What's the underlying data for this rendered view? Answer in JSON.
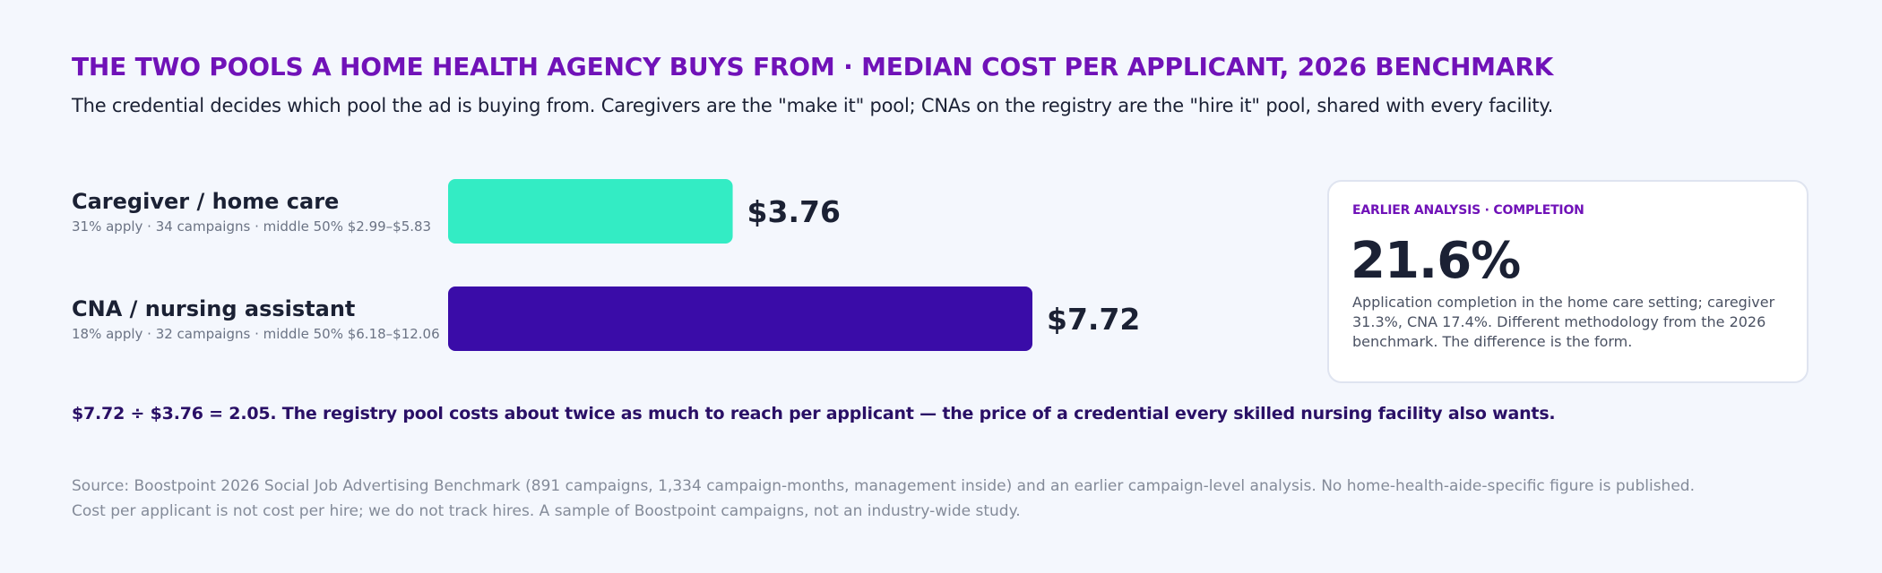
{
  "title": "THE TWO POOLS A HOME HEALTH AGENCY BUYS FROM · MEDIAN COST PER APPLICANT, 2026 BENCHMARK",
  "subtitle": "The credential decides which pool the ad is buying from. Caregivers are the \"make it\" pool; CNAs on the registry are the \"hire it\" pool, shared with every facility.",
  "rows": [
    {
      "label": "Caregiver / home care",
      "meta": "31% apply · 34 campaigns · middle 50% $2.99–$5.83",
      "value_label": "$3.76"
    },
    {
      "label": "CNA / nursing assistant",
      "meta": "18% apply · 32 campaigns · middle 50% $6.18–$12.06",
      "value_label": "$7.72"
    }
  ],
  "colors": {
    "caregiver_bar": "#33ecc4",
    "cna_bar": "#3a0ca8",
    "accent": "#7012b8"
  },
  "chart_data": {
    "type": "bar",
    "orientation": "horizontal",
    "title": "THE TWO POOLS A HOME HEALTH AGENCY BUYS FROM · MEDIAN COST PER APPLICANT, 2026 BENCHMARK",
    "categories": [
      "Caregiver / home care",
      "CNA / nursing assistant"
    ],
    "values": [
      3.76,
      7.72
    ],
    "value_labels": [
      "$3.76",
      "$7.72"
    ],
    "xlim": [
      0,
      7.72
    ],
    "grid": false,
    "legend": "none"
  },
  "card": {
    "kicker": "EARLIER ANALYSIS · COMPLETION",
    "stat": "21.6%",
    "note": "Application completion in the home care setting; caregiver 31.3%, CNA 17.4%. Different methodology from the 2026 benchmark. The difference is the form."
  },
  "takeaway": "$7.72 ÷ $3.76 = 2.05. The registry pool costs about twice as much to reach per applicant — the price of a credential every skilled nursing facility also wants.",
  "source": {
    "line1": "Source: Boostpoint 2026 Social Job Advertising Benchmark (891 campaigns, 1,334 campaign-months, management inside) and an earlier campaign-level analysis. No home-health-aide-specific figure is published.",
    "line2": "Cost per applicant is not cost per hire; we do not track hires. A sample of Boostpoint campaigns, not an industry-wide study."
  }
}
